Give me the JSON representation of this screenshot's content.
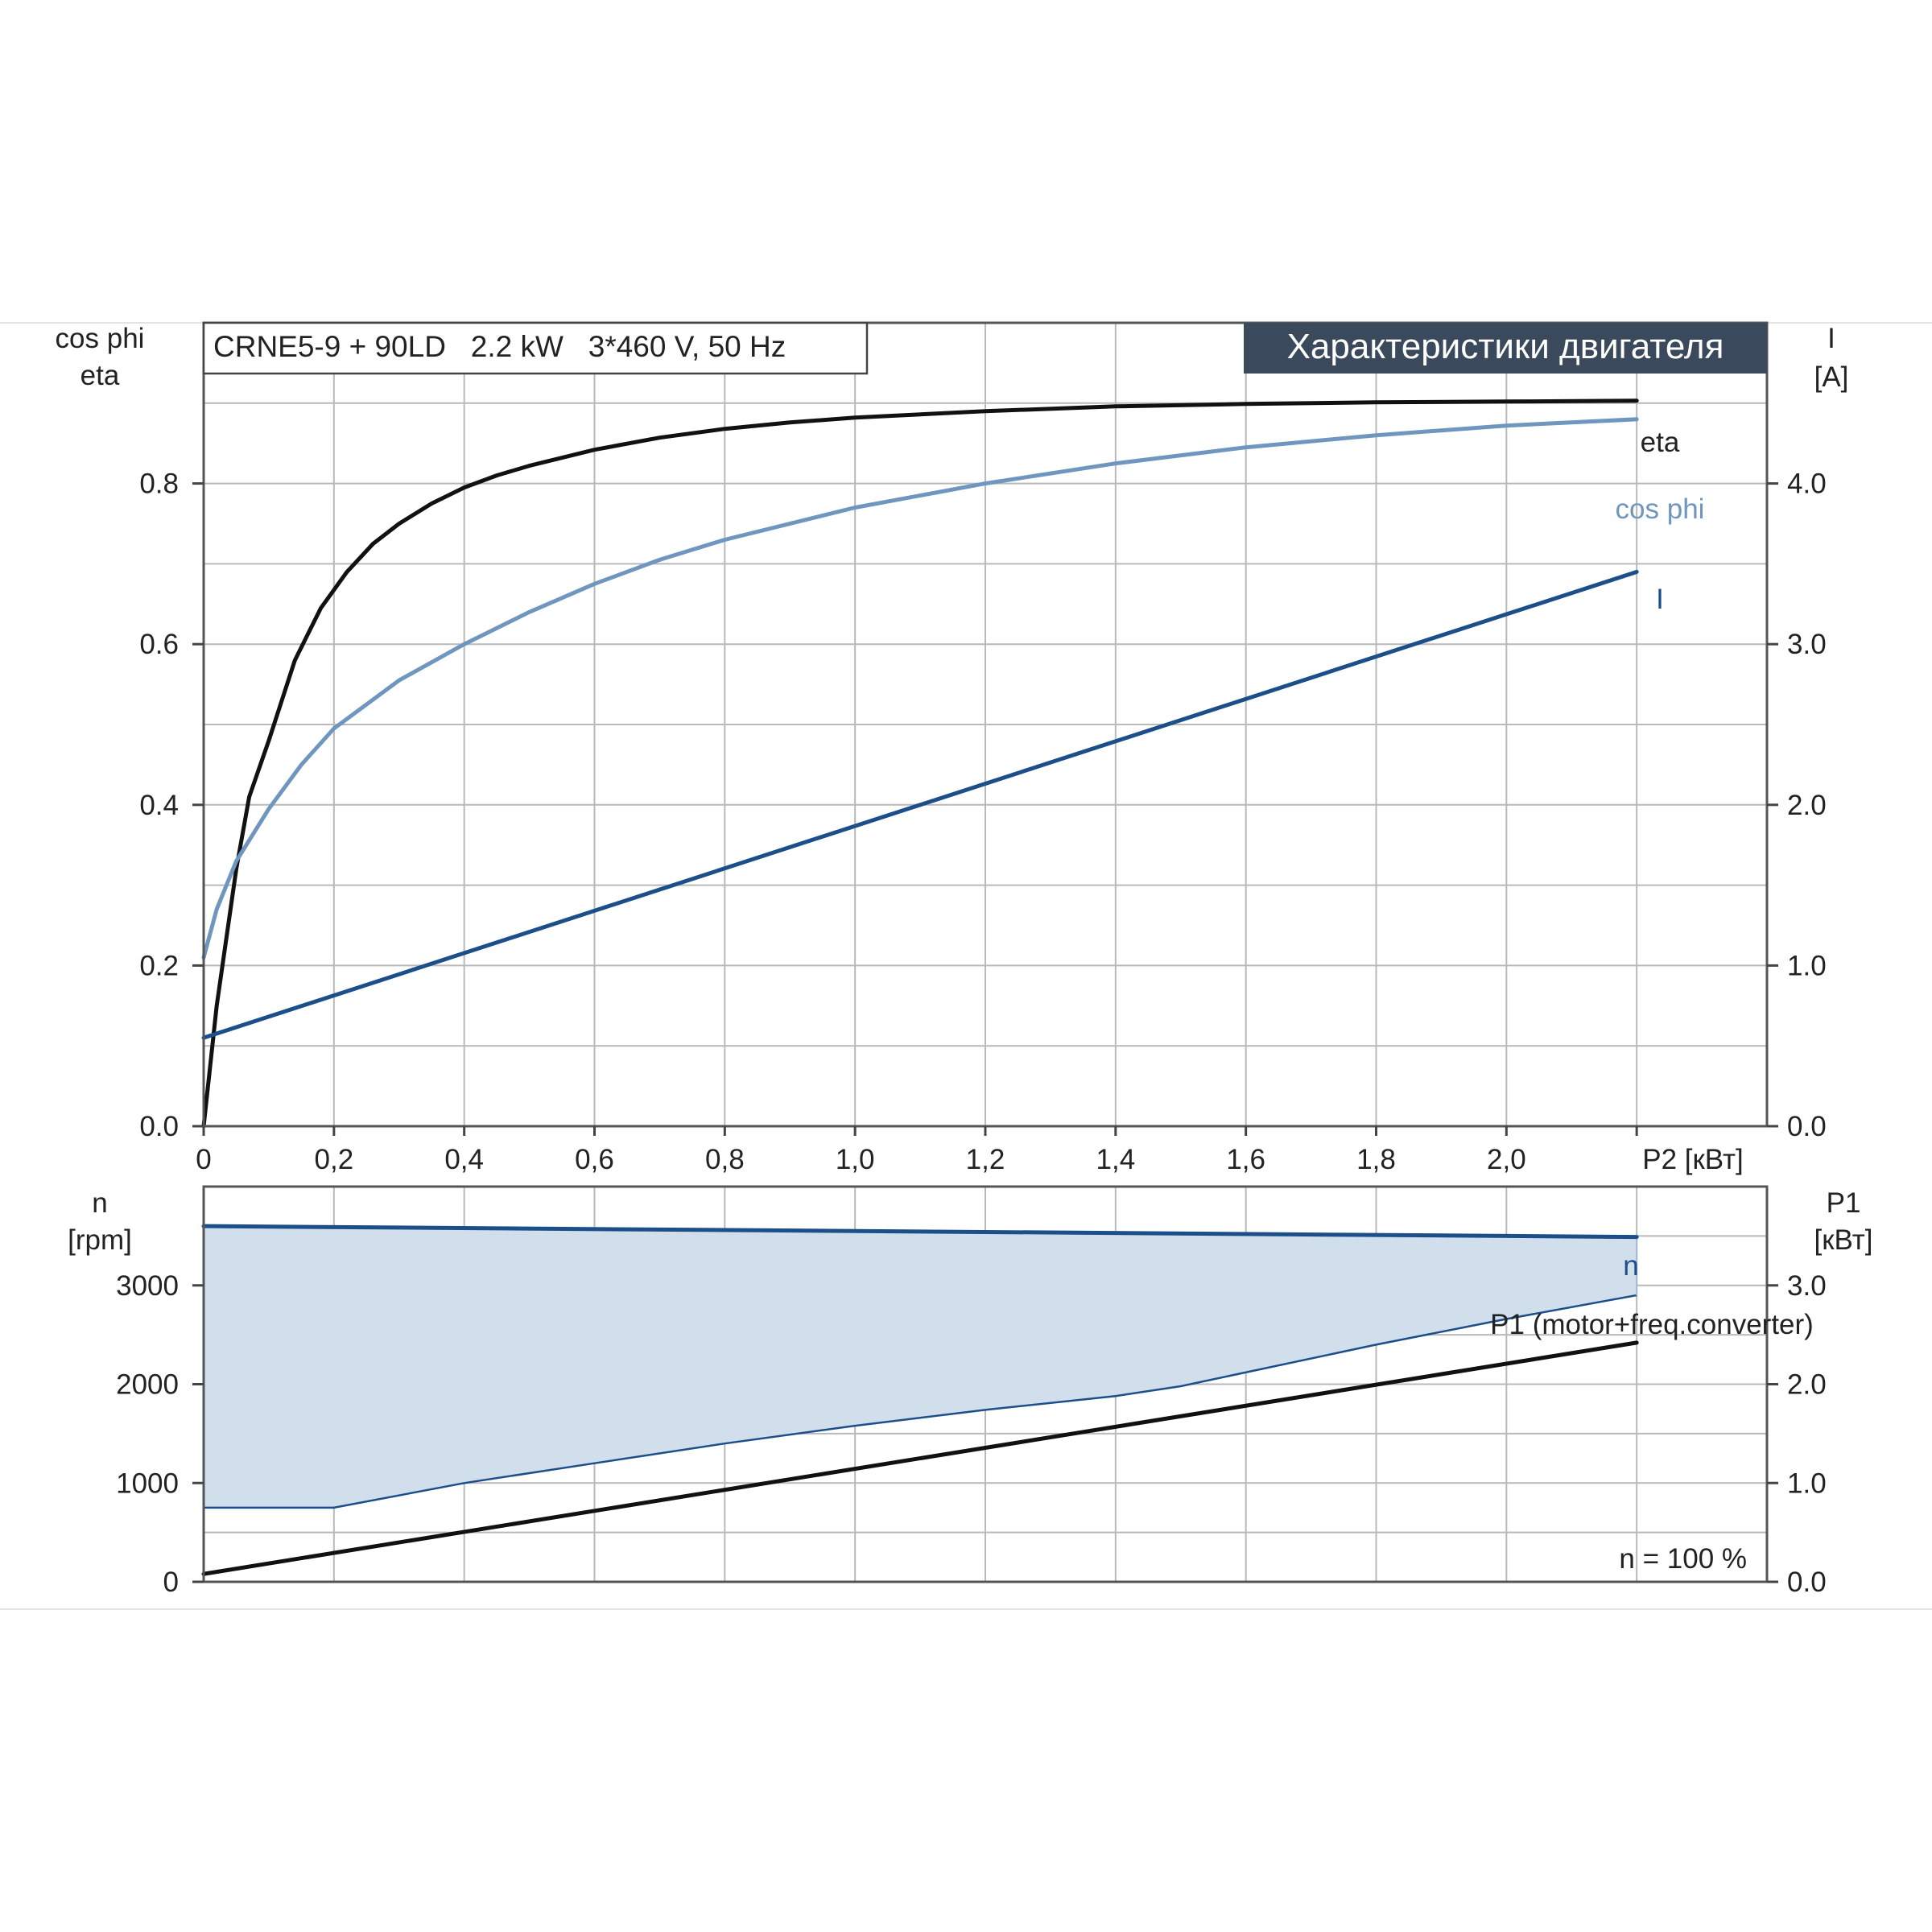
{
  "chart_data": [
    {
      "type": "line",
      "subtitle": "CRNE5-9 + 90LD   2.2 kW   3*460 V, 50 Hz",
      "title": "Характеристики двигателя",
      "xlabel": "P2 [кВт]",
      "ylabel_left": [
        "cos phi",
        "eta"
      ],
      "ylabel_right": [
        "I",
        "[A]"
      ],
      "xlim": [
        0,
        2.4
      ],
      "ylim_left": [
        0,
        1.0
      ],
      "ylim_right": [
        0,
        5.0
      ],
      "grid": true,
      "x_ticks": [
        "0",
        "0,2",
        "0,4",
        "0,6",
        "0,8",
        "1,0",
        "1,2",
        "1,4",
        "1,6",
        "1,8",
        "2,0"
      ],
      "x_tick_values": [
        0,
        0.2,
        0.4,
        0.6,
        0.8,
        1.0,
        1.2,
        1.4,
        1.6,
        1.8,
        2.0
      ],
      "y_left_ticks": [
        "0.0",
        "0.2",
        "0.4",
        "0.6",
        "0.8"
      ],
      "y_left_tick_values": [
        0,
        0.2,
        0.4,
        0.6,
        0.8
      ],
      "y_right_ticks": [
        "0.0",
        "1.0",
        "2.0",
        "3.0",
        "4.0"
      ],
      "y_right_tick_values": [
        0,
        1,
        2,
        3,
        4
      ],
      "series": [
        {
          "name": "eta",
          "axis": "left",
          "color": "#111111",
          "x": [
            0,
            0.02,
            0.05,
            0.07,
            0.1,
            0.14,
            0.18,
            0.22,
            0.26,
            0.3,
            0.35,
            0.4,
            0.45,
            0.5,
            0.6,
            0.7,
            0.8,
            0.9,
            1.0,
            1.2,
            1.4,
            1.6,
            1.8,
            2.0,
            2.2
          ],
          "y": [
            0.0,
            0.15,
            0.32,
            0.41,
            0.48,
            0.58,
            0.645,
            0.69,
            0.725,
            0.75,
            0.775,
            0.795,
            0.81,
            0.822,
            0.842,
            0.857,
            0.868,
            0.876,
            0.882,
            0.89,
            0.896,
            0.899,
            0.901,
            0.902,
            0.903
          ]
        },
        {
          "name": "cos phi",
          "axis": "left",
          "color": "#6f96bf",
          "x": [
            0,
            0.02,
            0.05,
            0.1,
            0.15,
            0.2,
            0.3,
            0.4,
            0.5,
            0.6,
            0.7,
            0.8,
            1.0,
            1.2,
            1.4,
            1.6,
            1.8,
            2.0,
            2.2
          ],
          "y": [
            0.21,
            0.27,
            0.33,
            0.395,
            0.45,
            0.495,
            0.555,
            0.6,
            0.64,
            0.675,
            0.705,
            0.73,
            0.77,
            0.8,
            0.825,
            0.845,
            0.86,
            0.872,
            0.88
          ]
        },
        {
          "name": "I",
          "axis": "right",
          "color": "#1c4f8a",
          "x": [
            0,
            2.2
          ],
          "y": [
            0.55,
            3.45
          ]
        }
      ]
    },
    {
      "type": "line",
      "xlim": [
        0,
        2.4
      ],
      "ylabel_left": [
        "n",
        "[rpm]"
      ],
      "ylabel_right": [
        "P1",
        "[кВт]"
      ],
      "ylim_left": [
        0,
        4000
      ],
      "ylim_right": [
        0,
        4.0
      ],
      "grid": true,
      "x_tick_values": [
        0,
        0.2,
        0.4,
        0.6,
        0.8,
        1.0,
        1.2,
        1.4,
        1.6,
        1.8,
        2.0
      ],
      "y_left_ticks": [
        "0",
        "1000",
        "2000",
        "3000"
      ],
      "y_left_tick_values": [
        0,
        1000,
        2000,
        3000
      ],
      "y_right_ticks": [
        "0.0",
        "1.0",
        "2.0",
        "3.0"
      ],
      "y_right_tick_values": [
        0,
        1,
        2,
        3
      ],
      "note": "n = 100 %",
      "series": [
        {
          "name": "n",
          "axis": "left",
          "color": "#1c4f8a",
          "x": [
            0,
            2.2
          ],
          "y": [
            3600,
            3490
          ]
        },
        {
          "name": "P1 (motor+freq.converter)",
          "axis": "right",
          "color": "#111111",
          "x": [
            0,
            2.2
          ],
          "y": [
            0.08,
            2.42
          ]
        }
      ],
      "band": {
        "color": "#d1deec",
        "edge_color": "#1c4f8a",
        "upper": {
          "x": [
            0,
            2.2
          ],
          "y": [
            3600,
            3490
          ]
        },
        "lower": {
          "x": [
            0,
            0.2,
            0.4,
            0.6,
            0.8,
            1.0,
            1.2,
            1.4,
            1.5,
            1.8,
            2.0,
            2.2
          ],
          "y": [
            750,
            750,
            1000,
            1200,
            1400,
            1580,
            1740,
            1880,
            1980,
            2400,
            2660,
            2900
          ]
        }
      }
    }
  ]
}
